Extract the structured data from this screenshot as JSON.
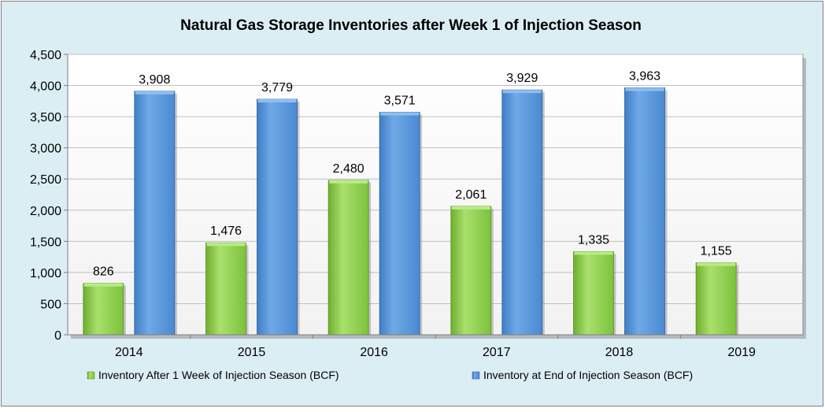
{
  "chart_data": {
    "type": "bar",
    "title": "Natural Gas Storage Inventories after Week 1 of Injection Season",
    "xlabel": "",
    "ylabel": "",
    "categories": [
      "2014",
      "2015",
      "2016",
      "2017",
      "2018",
      "2019"
    ],
    "ylim": [
      0,
      4500
    ],
    "yticks": [
      0,
      500,
      1000,
      1500,
      2000,
      2500,
      3000,
      3500,
      4000,
      4500
    ],
    "grid": true,
    "legend_position": "bottom",
    "series": [
      {
        "name": "Inventory After 1 Week of Injection Season (BCF)",
        "values": [
          826,
          1476,
          2480,
          2061,
          1335,
          1155
        ],
        "labels": [
          "826",
          "1,476",
          "2,480",
          "2,061",
          "1,335",
          "1,155"
        ],
        "color": "#8fd14f"
      },
      {
        "name": "Inventory at End of Injection Season (BCF)",
        "values": [
          3908,
          3779,
          3571,
          3929,
          3963,
          null
        ],
        "labels": [
          "3,908",
          "3,779",
          "3,571",
          "3,929",
          "3,963",
          ""
        ],
        "color": "#5b9bd5"
      }
    ]
  },
  "colors": {
    "chart_background": "#dbeef4",
    "plot_background": "#ffffff",
    "gridline": "#bfbfbf",
    "axis": "#000000"
  }
}
